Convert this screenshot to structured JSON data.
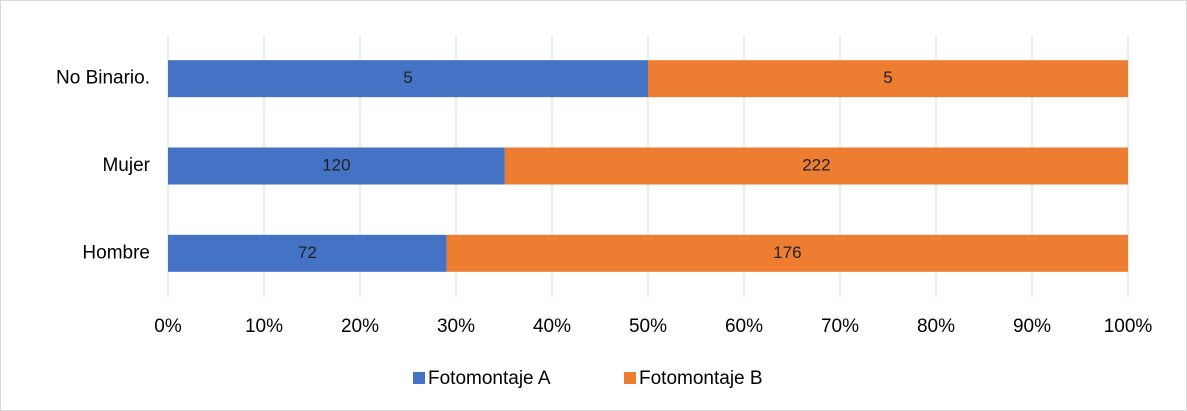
{
  "chart_data": {
    "type": "bar",
    "orientation": "horizontal",
    "stacking": "percent",
    "categories": [
      "Hombre",
      "Mujer",
      "No Binario."
    ],
    "series": [
      {
        "name": "Fotomontaje A",
        "color": "#4472c4",
        "values": [
          72,
          120,
          5
        ]
      },
      {
        "name": "Fotomontaje B",
        "color": "#ed7d31",
        "values": [
          176,
          222,
          5
        ]
      }
    ],
    "xlim": [
      0,
      100
    ],
    "xticks": [
      {
        "value": 0,
        "label": "0%"
      },
      {
        "value": 10,
        "label": "10%"
      },
      {
        "value": 20,
        "label": "20%"
      },
      {
        "value": 30,
        "label": "30%"
      },
      {
        "value": 40,
        "label": "40%"
      },
      {
        "value": 50,
        "label": "50%"
      },
      {
        "value": 60,
        "label": "60%"
      },
      {
        "value": 70,
        "label": "70%"
      },
      {
        "value": 80,
        "label": "80%"
      },
      {
        "value": 90,
        "label": "90%"
      },
      {
        "value": 100,
        "label": "100%"
      }
    ],
    "grid": true,
    "legend": "bottom"
  }
}
